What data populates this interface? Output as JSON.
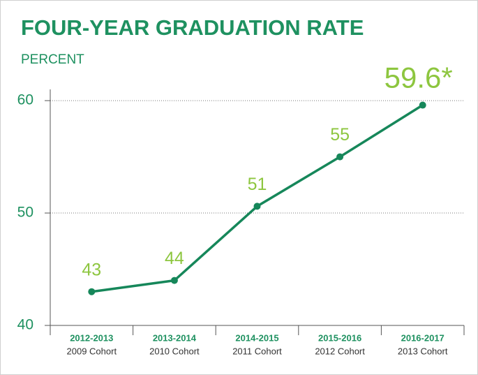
{
  "chart_data": {
    "type": "line",
    "title": "FOUR-YEAR GRADUATION RATE",
    "y_label": "PERCENT",
    "categories": [
      "2012-2013",
      "2013-2014",
      "2014-2015",
      "2015-2016",
      "2016-2017"
    ],
    "cohorts": [
      "2009 Cohort",
      "2010 Cohort",
      "2011 Cohort",
      "2012 Cohort",
      "2013 Cohort"
    ],
    "values": [
      43,
      44,
      50.6,
      55,
      59.6
    ],
    "value_labels": [
      "43",
      "44",
      "51",
      "55",
      "59.6*"
    ],
    "color": "#16875a",
    "ylim": [
      40,
      61
    ],
    "yticks": [
      40,
      50,
      60
    ],
    "grid": true
  }
}
